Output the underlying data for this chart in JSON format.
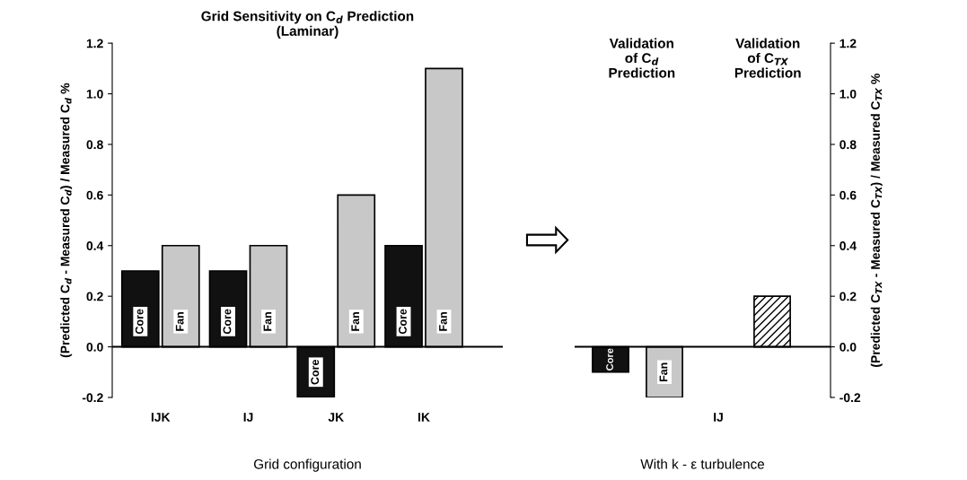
{
  "chart_data": [
    {
      "type": "bar",
      "title": "Grid Sensitivity on C$_{d}$ Prediction\n(Laminar)",
      "xlabel": "Grid configuration",
      "ylabel": "(Predicted C$_{d}$ - Measured C$_{d}$) / Measured C$_{d}$ %",
      "categories": [
        "IJK",
        "IJ",
        "JK",
        "IK"
      ],
      "series": [
        {
          "name": "Core",
          "color": "#111111",
          "values": [
            0.3,
            0.3,
            -0.2,
            0.4
          ]
        },
        {
          "name": "Fan",
          "color": "#c8c8c8",
          "values": [
            0.4,
            0.4,
            0.6,
            1.1
          ]
        }
      ],
      "ylim": [
        -0.2,
        1.2
      ],
      "yticks": [
        {
          "value": -0.2,
          "label": "-0.2"
        },
        {
          "value": 0,
          "label": "0.0"
        },
        {
          "value": 0.2,
          "label": "0.2"
        },
        {
          "value": 0.4,
          "label": "0.4"
        },
        {
          "value": 0.6,
          "label": "0.6"
        },
        {
          "value": 0.8,
          "label": "0.8"
        },
        {
          "value": 1.0,
          "label": "1.0"
        },
        {
          "value": 1.2,
          "label": "1.2"
        }
      ],
      "ref_lines": [
        {
          "axis": "y",
          "value": 0,
          "color": "#000000"
        }
      ],
      "grid": false,
      "legend": false
    },
    {
      "type": "bar",
      "xlabel": "With k - ε turbulence",
      "ylabel": "(Predicted C$_{TX}$ - Measured C$_{TX}$) / Measured C$_{TX}$ %",
      "annotations": [
        "Validation\nof C$_{d}$\nPrediction",
        "Validation\nof C$_{TX}$\nPrediction"
      ],
      "categories": [
        null,
        null,
        "IJ",
        null
      ],
      "series": [
        {
          "name": "Core",
          "color": "#111111",
          "values": [
            -0.1,
            null,
            null,
            null
          ]
        },
        {
          "name": "Fan",
          "color": "#c8c8c8",
          "values": [
            null,
            -0.2,
            null,
            null
          ]
        },
        {
          "color": "#000000",
          "values": [
            null,
            null,
            null,
            0.2
          ]
        }
      ],
      "ylim": [
        -0.2,
        1.2
      ],
      "yticks": [
        {
          "value": -0.2,
          "label": "-0.2"
        },
        {
          "value": 0,
          "label": "0.0"
        },
        {
          "value": 0.2,
          "label": "0.2"
        },
        {
          "value": 0.4,
          "label": "0.4"
        },
        {
          "value": 0.6,
          "label": "0.6"
        },
        {
          "value": 0.8,
          "label": "0.8"
        },
        {
          "value": 1.0,
          "label": "1.0"
        },
        {
          "value": 1.2,
          "label": "1.2"
        }
      ],
      "ref_lines": [
        {
          "axis": "y",
          "value": 0,
          "color": "#000000"
        }
      ],
      "grid": false,
      "legend": false
    }
  ]
}
